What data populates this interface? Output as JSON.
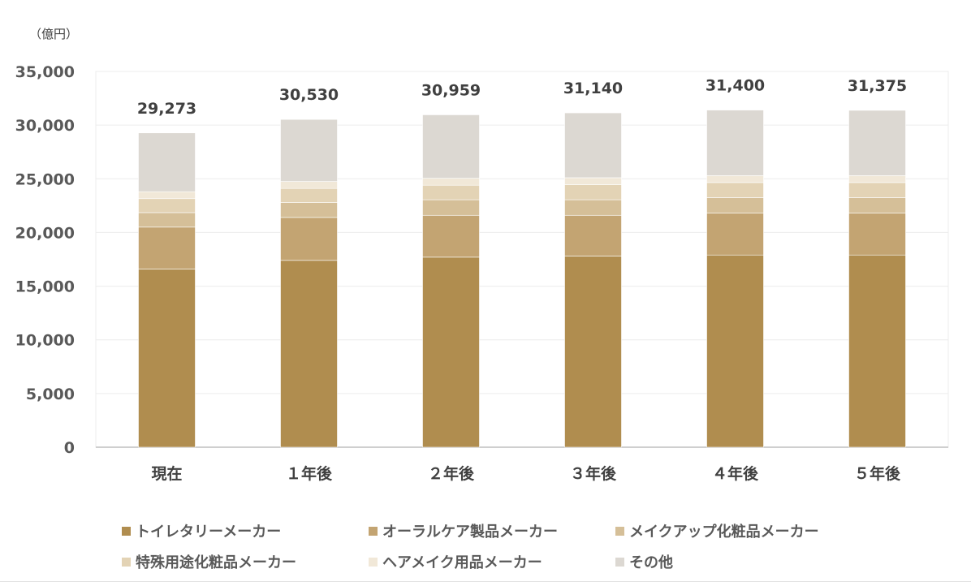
{
  "chart_data": {
    "type": "bar",
    "stacked": true,
    "unit_label": "（億円）",
    "categories": [
      "現在",
      "１年後",
      "２年後",
      "３年後",
      "４年後",
      "５年後"
    ],
    "totals": [
      "29,273",
      "30,530",
      "30,959",
      "31,140",
      "31,400",
      "31,375"
    ],
    "total_values": [
      29273,
      30530,
      30959,
      31140,
      31400,
      31375
    ],
    "y_ticks": [
      "0",
      "5,000",
      "10,000",
      "15,000",
      "20,000",
      "25,000",
      "30,000",
      "35,000"
    ],
    "ylim": [
      0,
      35000
    ],
    "grid": true,
    "legend_position": "bottom",
    "series": [
      {
        "name": "トイレタリーメーカー",
        "color": "#b08d4f",
        "values": [
          16600,
          17400,
          17700,
          17800,
          17900,
          17900
        ]
      },
      {
        "name": "オーラルケア製品メーカー",
        "color": "#c3a472",
        "values": [
          3900,
          4000,
          3900,
          3800,
          3900,
          3900
        ]
      },
      {
        "name": "メイクアップ化粧品メーカー",
        "color": "#d5bf98",
        "values": [
          1350,
          1400,
          1450,
          1450,
          1450,
          1450
        ]
      },
      {
        "name": "特殊用途化粧品メーカー",
        "color": "#e3d3b5",
        "values": [
          1300,
          1300,
          1350,
          1400,
          1400,
          1400
        ]
      },
      {
        "name": "ヘアメイク用品メーカー",
        "color": "#f1e8d8",
        "values": [
          650,
          650,
          650,
          650,
          650,
          650
        ]
      },
      {
        "name": "その他",
        "color": "#dcd8d2",
        "values": [
          5473,
          5780,
          5909,
          6040,
          6100,
          6075
        ]
      }
    ]
  }
}
